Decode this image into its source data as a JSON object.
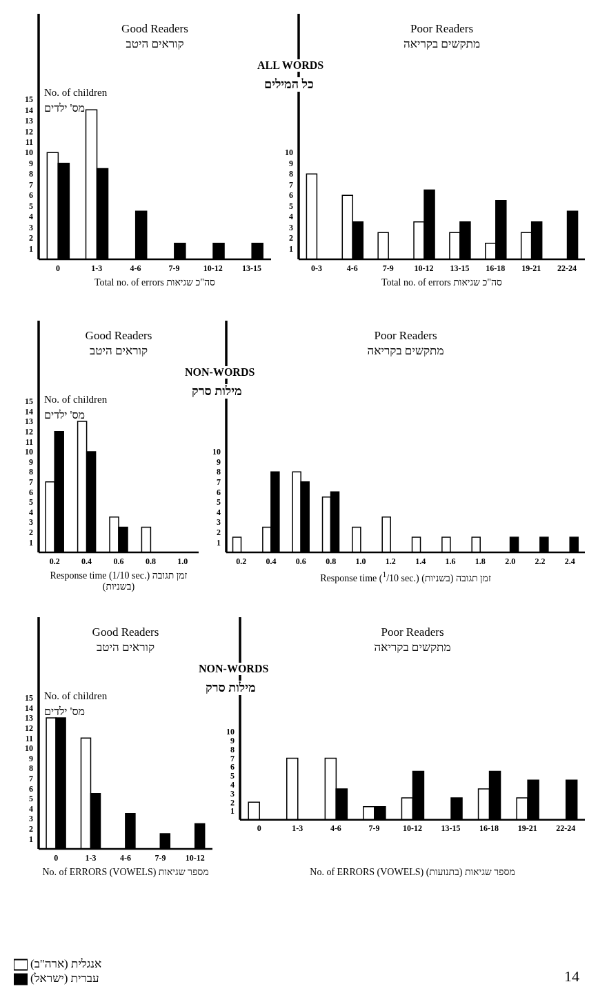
{
  "chart_data": [
    {
      "type": "bar",
      "title": "Good Readers",
      "subtitle": "קוראים היטב",
      "ylabel": "No. of children",
      "xlabel": "Total no. of errors  סה\"כ שגיאות",
      "annotations": [
        "מס' ילדים"
      ],
      "categories": [
        "0",
        "1-3",
        "4-6",
        "7-9",
        "10-12",
        "13-15"
      ],
      "ylim": [
        0,
        23
      ],
      "yticks": [
        1,
        2,
        3,
        4,
        5,
        6,
        7,
        8,
        9,
        10,
        11,
        12,
        13,
        14,
        15
      ],
      "series": [
        {
          "color": "#ffffff",
          "values": [
            10,
            14,
            null,
            null,
            null,
            null
          ]
        },
        {
          "color": "#000000",
          "values": [
            9,
            8.5,
            4.5,
            1.5,
            1.5,
            1.5
          ]
        }
      ]
    },
    {
      "type": "bar",
      "title": "Poor Readers",
      "subtitle": "מתקשים בקריאה",
      "xlabel": "Total no. of errors  סה\"כ שגיאות",
      "annotations": [
        "ALL WORDS",
        "כל המילים"
      ],
      "categories": [
        "0-3",
        "4-6",
        "7-9",
        "10-12",
        "13-15",
        "16-18",
        "19-21",
        "22-24"
      ],
      "ylim": [
        0,
        23
      ],
      "yticks": [
        1,
        2,
        3,
        4,
        5,
        6,
        7,
        8,
        9,
        10
      ],
      "series": [
        {
          "color": "#ffffff",
          "values": [
            8,
            6,
            2.5,
            3.5,
            2.5,
            1.5,
            2.5,
            null
          ]
        },
        {
          "color": "#000000",
          "values": [
            null,
            3.5,
            null,
            6.5,
            3.5,
            5.5,
            3.5,
            4.5
          ]
        }
      ]
    },
    {
      "type": "bar",
      "title": "Good Readers",
      "subtitle": "קוראים היטב",
      "ylabel": "No. of children",
      "xlabel": "Response time (1/10 sec.)  זמן תגובה (בשניות)",
      "annotations": [
        "מס' ילדים"
      ],
      "categories": [
        "0.2",
        "0.4",
        "0.6",
        "0.8",
        "1.0"
      ],
      "ylim": [
        0,
        23
      ],
      "yticks": [
        1,
        2,
        3,
        4,
        5,
        6,
        7,
        8,
        9,
        10,
        11,
        12,
        13,
        14,
        15
      ],
      "series": [
        {
          "color": "#ffffff",
          "values": [
            7,
            13,
            3.5,
            2.5,
            null
          ]
        },
        {
          "color": "#000000",
          "values": [
            12,
            10,
            2.5,
            null,
            null
          ]
        }
      ]
    },
    {
      "type": "bar",
      "title": "Poor Readers",
      "subtitle": "מתקשים בקריאה",
      "xlabel": "Response time ($^{1}$/10 sec.)   זמן תגובה (בשניות)",
      "annotations": [
        "NON-WORDS",
        "מילות סרק"
      ],
      "categories": [
        "0.2",
        "0.4",
        "0.6",
        "0.8",
        "1.0",
        "1.2",
        "1.4",
        "1.6",
        "1.8",
        "2.0",
        "2.2",
        "2.4"
      ],
      "ylim": [
        0,
        23
      ],
      "yticks": [
        1,
        2,
        3,
        4,
        5,
        6,
        7,
        8,
        9,
        10
      ],
      "series": [
        {
          "color": "#ffffff",
          "values": [
            1.5,
            2.5,
            8,
            5.5,
            2.5,
            3.5,
            1.5,
            1.5,
            1.5,
            null,
            null,
            null
          ]
        },
        {
          "color": "#000000",
          "values": [
            null,
            8,
            7,
            6,
            null,
            null,
            null,
            null,
            null,
            1.5,
            1.5,
            1.5
          ]
        }
      ]
    },
    {
      "type": "bar",
      "title": "Good Readers",
      "subtitle": "קוראים היטב",
      "ylabel": "No. of children",
      "xlabel": "No. of ERRORS (VOWELS)  מספר שגיאות",
      "annotations": [
        "מס' ילדים"
      ],
      "categories": [
        "0",
        "1-3",
        "4-6",
        "7-9",
        "10-12"
      ],
      "ylim": [
        0,
        23
      ],
      "yticks": [
        1,
        2,
        3,
        4,
        5,
        6,
        7,
        8,
        9,
        10,
        11,
        12,
        13,
        14,
        15
      ],
      "series": [
        {
          "color": "#ffffff",
          "values": [
            13,
            11,
            null,
            null,
            null
          ]
        },
        {
          "color": "#000000",
          "values": [
            13,
            5.5,
            3.5,
            1.5,
            2.5
          ]
        }
      ]
    },
    {
      "type": "bar",
      "title": "Poor Readers",
      "subtitle": "מתקשים בקריאה",
      "xlabel": "No. of ERRORS (VOWELS)  מספר שגיאות (בתנועות)",
      "annotations": [
        "NON-WORDS",
        "מילות סרק",
        "14"
      ],
      "categories": [
        "0",
        "1-3",
        "4-6",
        "7-9",
        "10-12",
        "13-15",
        "16-18",
        "19-21",
        "22-24"
      ],
      "ylim": [
        0,
        23
      ],
      "yticks": [
        1,
        2,
        3,
        4,
        5,
        6,
        7,
        8,
        9,
        10
      ],
      "legend": "bottom",
      "series": [
        {
          "name": "אנגלית (ארה\"ב)",
          "color": "#ffffff",
          "values": [
            2,
            7,
            7,
            1.5,
            2.5,
            null,
            3.5,
            2.5,
            null
          ]
        },
        {
          "name": "עברית (ישראל)",
          "color": "#000000",
          "values": [
            null,
            null,
            3.5,
            1.5,
            5.5,
            2.5,
            5.5,
            4.5,
            4.5
          ]
        }
      ]
    }
  ]
}
